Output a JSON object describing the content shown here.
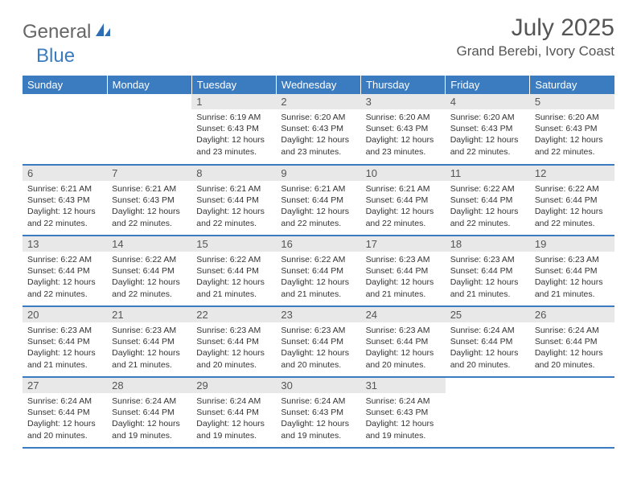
{
  "logo": {
    "part1": "General",
    "part2": "Blue"
  },
  "title": "July 2025",
  "location": "Grand Berebi, Ivory Coast",
  "colors": {
    "header_bg": "#3b7bbf",
    "header_text": "#ffffff",
    "daynum_bg": "#e8e8e8",
    "text": "#333333",
    "border": "#3b7bbf"
  },
  "daynames": [
    "Sunday",
    "Monday",
    "Tuesday",
    "Wednesday",
    "Thursday",
    "Friday",
    "Saturday"
  ],
  "weeks": [
    [
      null,
      null,
      {
        "n": "1",
        "sunrise": "6:19 AM",
        "sunset": "6:43 PM",
        "dl": "12 hours and 23 minutes."
      },
      {
        "n": "2",
        "sunrise": "6:20 AM",
        "sunset": "6:43 PM",
        "dl": "12 hours and 23 minutes."
      },
      {
        "n": "3",
        "sunrise": "6:20 AM",
        "sunset": "6:43 PM",
        "dl": "12 hours and 23 minutes."
      },
      {
        "n": "4",
        "sunrise": "6:20 AM",
        "sunset": "6:43 PM",
        "dl": "12 hours and 22 minutes."
      },
      {
        "n": "5",
        "sunrise": "6:20 AM",
        "sunset": "6:43 PM",
        "dl": "12 hours and 22 minutes."
      }
    ],
    [
      {
        "n": "6",
        "sunrise": "6:21 AM",
        "sunset": "6:43 PM",
        "dl": "12 hours and 22 minutes."
      },
      {
        "n": "7",
        "sunrise": "6:21 AM",
        "sunset": "6:43 PM",
        "dl": "12 hours and 22 minutes."
      },
      {
        "n": "8",
        "sunrise": "6:21 AM",
        "sunset": "6:44 PM",
        "dl": "12 hours and 22 minutes."
      },
      {
        "n": "9",
        "sunrise": "6:21 AM",
        "sunset": "6:44 PM",
        "dl": "12 hours and 22 minutes."
      },
      {
        "n": "10",
        "sunrise": "6:21 AM",
        "sunset": "6:44 PM",
        "dl": "12 hours and 22 minutes."
      },
      {
        "n": "11",
        "sunrise": "6:22 AM",
        "sunset": "6:44 PM",
        "dl": "12 hours and 22 minutes."
      },
      {
        "n": "12",
        "sunrise": "6:22 AM",
        "sunset": "6:44 PM",
        "dl": "12 hours and 22 minutes."
      }
    ],
    [
      {
        "n": "13",
        "sunrise": "6:22 AM",
        "sunset": "6:44 PM",
        "dl": "12 hours and 22 minutes."
      },
      {
        "n": "14",
        "sunrise": "6:22 AM",
        "sunset": "6:44 PM",
        "dl": "12 hours and 22 minutes."
      },
      {
        "n": "15",
        "sunrise": "6:22 AM",
        "sunset": "6:44 PM",
        "dl": "12 hours and 21 minutes."
      },
      {
        "n": "16",
        "sunrise": "6:22 AM",
        "sunset": "6:44 PM",
        "dl": "12 hours and 21 minutes."
      },
      {
        "n": "17",
        "sunrise": "6:23 AM",
        "sunset": "6:44 PM",
        "dl": "12 hours and 21 minutes."
      },
      {
        "n": "18",
        "sunrise": "6:23 AM",
        "sunset": "6:44 PM",
        "dl": "12 hours and 21 minutes."
      },
      {
        "n": "19",
        "sunrise": "6:23 AM",
        "sunset": "6:44 PM",
        "dl": "12 hours and 21 minutes."
      }
    ],
    [
      {
        "n": "20",
        "sunrise": "6:23 AM",
        "sunset": "6:44 PM",
        "dl": "12 hours and 21 minutes."
      },
      {
        "n": "21",
        "sunrise": "6:23 AM",
        "sunset": "6:44 PM",
        "dl": "12 hours and 21 minutes."
      },
      {
        "n": "22",
        "sunrise": "6:23 AM",
        "sunset": "6:44 PM",
        "dl": "12 hours and 20 minutes."
      },
      {
        "n": "23",
        "sunrise": "6:23 AM",
        "sunset": "6:44 PM",
        "dl": "12 hours and 20 minutes."
      },
      {
        "n": "24",
        "sunrise": "6:23 AM",
        "sunset": "6:44 PM",
        "dl": "12 hours and 20 minutes."
      },
      {
        "n": "25",
        "sunrise": "6:24 AM",
        "sunset": "6:44 PM",
        "dl": "12 hours and 20 minutes."
      },
      {
        "n": "26",
        "sunrise": "6:24 AM",
        "sunset": "6:44 PM",
        "dl": "12 hours and 20 minutes."
      }
    ],
    [
      {
        "n": "27",
        "sunrise": "6:24 AM",
        "sunset": "6:44 PM",
        "dl": "12 hours and 20 minutes."
      },
      {
        "n": "28",
        "sunrise": "6:24 AM",
        "sunset": "6:44 PM",
        "dl": "12 hours and 19 minutes."
      },
      {
        "n": "29",
        "sunrise": "6:24 AM",
        "sunset": "6:44 PM",
        "dl": "12 hours and 19 minutes."
      },
      {
        "n": "30",
        "sunrise": "6:24 AM",
        "sunset": "6:43 PM",
        "dl": "12 hours and 19 minutes."
      },
      {
        "n": "31",
        "sunrise": "6:24 AM",
        "sunset": "6:43 PM",
        "dl": "12 hours and 19 minutes."
      },
      null,
      null
    ]
  ],
  "labels": {
    "sunrise": "Sunrise: ",
    "sunset": "Sunset: ",
    "daylight": "Daylight: "
  }
}
